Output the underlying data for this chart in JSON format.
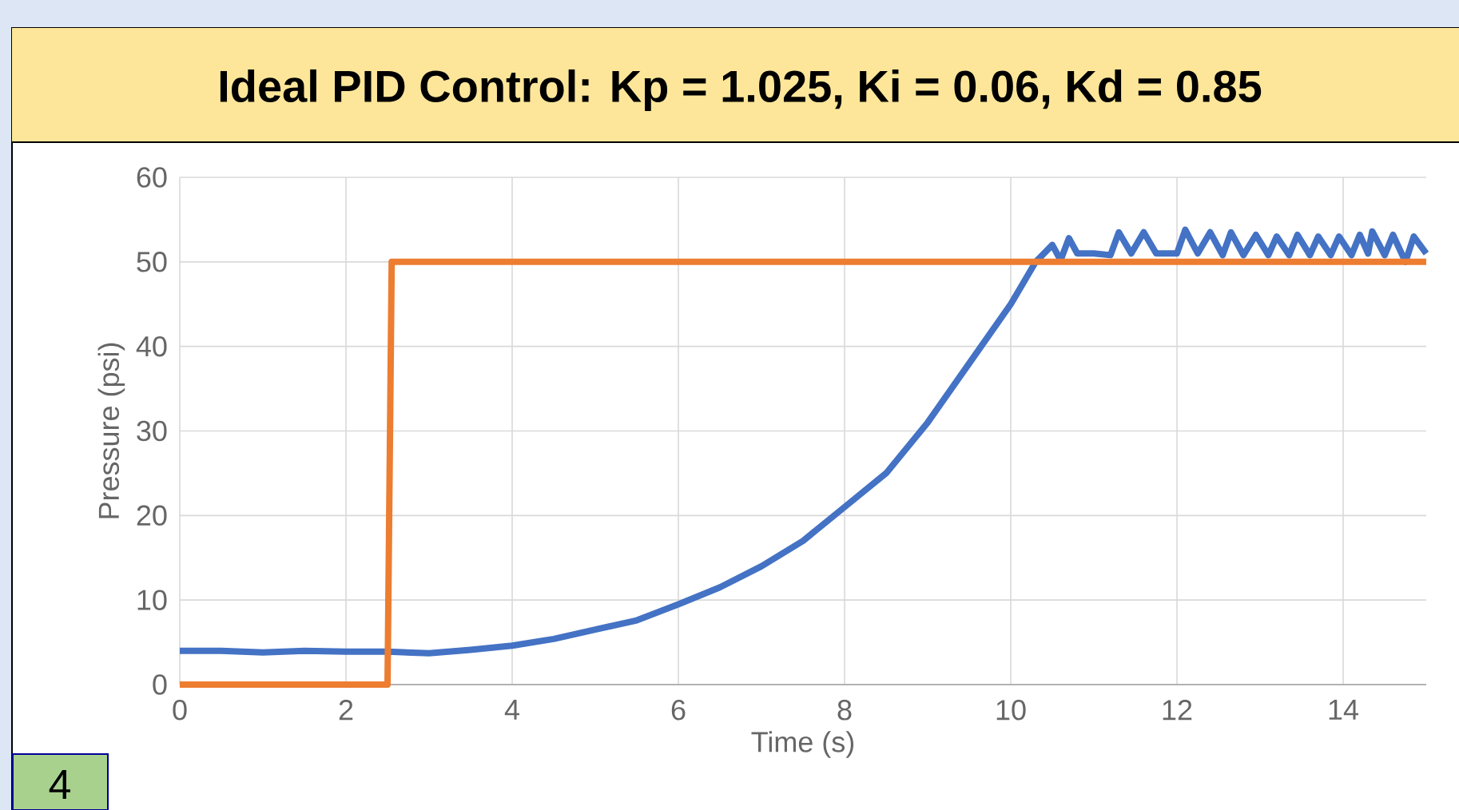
{
  "chart_data": {
    "type": "line",
    "title": "Ideal PID Control: Kp = 1.025, Ki = 0.06, Kd = 0.85",
    "xlabel": "Time (s)",
    "ylabel": "Pressure (psi)",
    "xlim": [
      0,
      15
    ],
    "ylim": [
      0,
      60
    ],
    "xticks": [
      0,
      2,
      4,
      6,
      8,
      10,
      12,
      14
    ],
    "yticks": [
      0,
      10,
      20,
      30,
      40,
      50,
      60
    ],
    "grid": true,
    "series": [
      {
        "color": "#4472c4",
        "x": [
          0,
          0.5,
          1,
          1.5,
          2,
          2.5,
          3,
          3.5,
          4,
          4.5,
          5,
          5.5,
          6,
          6.5,
          7,
          7.5,
          8,
          8.5,
          9,
          9.5,
          10,
          10.3,
          10.5,
          10.6,
          10.7,
          10.8,
          11,
          11.2,
          11.3,
          11.45,
          11.6,
          11.75,
          12,
          12.1,
          12.25,
          12.4,
          12.55,
          12.65,
          12.8,
          12.95,
          13.1,
          13.2,
          13.35,
          13.45,
          13.6,
          13.7,
          13.85,
          13.95,
          14.1,
          14.2,
          14.3,
          14.35,
          14.5,
          14.6,
          14.75,
          14.85,
          15
        ],
        "values": [
          4,
          4,
          3.8,
          4,
          3.9,
          3.9,
          3.7,
          4.1,
          4.6,
          5.4,
          6.5,
          7.6,
          9.5,
          11.5,
          14,
          17,
          21,
          25,
          31,
          38,
          45,
          50,
          52,
          50.2,
          52.8,
          51,
          51,
          50.8,
          53.5,
          51,
          53.5,
          51,
          51,
          53.8,
          51,
          53.5,
          50.8,
          53.5,
          50.8,
          53.2,
          50.8,
          53,
          50.8,
          53.2,
          50.8,
          53,
          50.8,
          53,
          50.8,
          53.2,
          51,
          53.6,
          50.8,
          53.2,
          50,
          53,
          51
        ]
      },
      {
        "color": "#ed7d31",
        "x": [
          0,
          2.5,
          2.55,
          15
        ],
        "values": [
          0,
          0,
          50,
          50
        ]
      }
    ],
    "annotations": [
      "4"
    ]
  }
}
